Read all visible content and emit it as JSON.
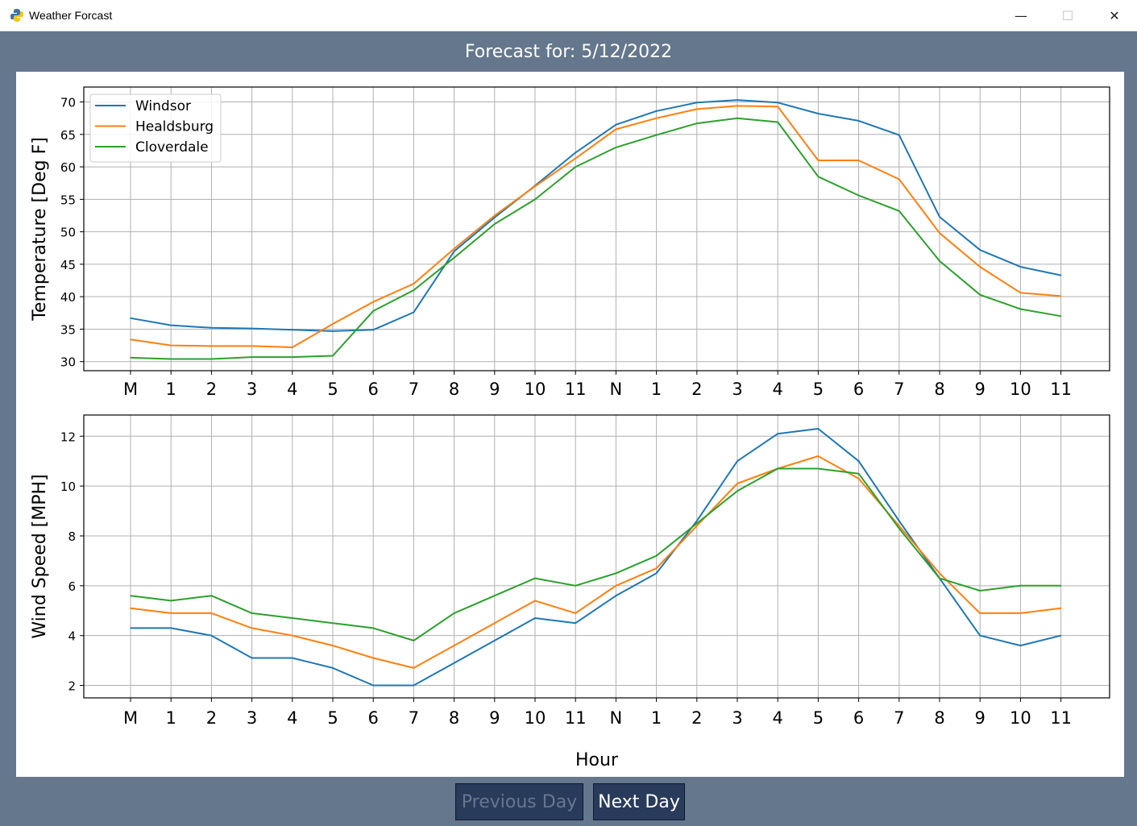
{
  "window": {
    "title": "Weather Forcast",
    "icon": "python-icon",
    "controls": {
      "minimize": "—",
      "maximize": "☐",
      "close": "✕"
    }
  },
  "header": {
    "title": "Forecast for: 5/12/2022"
  },
  "buttons": {
    "previous_label": "Previous Day",
    "previous_enabled": false,
    "next_label": "Next Day",
    "next_enabled": true
  },
  "chart_data": [
    {
      "type": "line",
      "ylabel": "Temperature [Deg F]",
      "xlabel": "",
      "categories": [
        "M",
        "1",
        "2",
        "3",
        "4",
        "5",
        "6",
        "7",
        "8",
        "9",
        "10",
        "11",
        "N",
        "1",
        "2",
        "3",
        "4",
        "5",
        "6",
        "7",
        "8",
        "9",
        "10",
        "11"
      ],
      "yticks": [
        30,
        35,
        40,
        45,
        50,
        55,
        60,
        65,
        70
      ],
      "ylim": [
        28.6,
        72.3
      ],
      "grid": true,
      "legend": "top-left",
      "series": [
        {
          "name": "Windsor",
          "color": "#1f77b4",
          "values": [
            36.7,
            35.6,
            35.2,
            35.1,
            34.9,
            34.7,
            34.9,
            37.6,
            47.0,
            52.2,
            57.1,
            62.2,
            66.5,
            68.6,
            69.9,
            70.3,
            69.9,
            68.2,
            67.1,
            64.9,
            52.3,
            47.2,
            44.6,
            43.3
          ]
        },
        {
          "name": "Healdsburg",
          "color": "#ff7f0e",
          "values": [
            33.4,
            32.5,
            32.4,
            32.4,
            32.2,
            35.8,
            39.2,
            42.0,
            47.4,
            52.5,
            57.0,
            61.3,
            65.8,
            67.5,
            68.9,
            69.4,
            69.3,
            61.0,
            61.0,
            58.1,
            49.8,
            44.6,
            40.6,
            40.1
          ]
        },
        {
          "name": "Cloverdale",
          "color": "#2ca02c",
          "values": [
            30.6,
            30.4,
            30.4,
            30.7,
            30.7,
            30.9,
            37.8,
            41.0,
            46.0,
            51.2,
            55.0,
            60.0,
            63.0,
            64.9,
            66.7,
            67.5,
            66.9,
            58.5,
            55.6,
            53.2,
            45.5,
            40.3,
            38.1,
            37.0
          ]
        }
      ]
    },
    {
      "type": "line",
      "ylabel": "Wind Speed [MPH]",
      "xlabel": "Hour",
      "categories": [
        "M",
        "1",
        "2",
        "3",
        "4",
        "5",
        "6",
        "7",
        "8",
        "9",
        "10",
        "11",
        "N",
        "1",
        "2",
        "3",
        "4",
        "5",
        "6",
        "7",
        "8",
        "9",
        "10",
        "11"
      ],
      "yticks": [
        2,
        4,
        6,
        8,
        10,
        12
      ],
      "ylim": [
        1.5,
        12.85
      ],
      "grid": true,
      "series": [
        {
          "name": "Windsor",
          "color": "#1f77b4",
          "values": [
            4.3,
            4.3,
            4.0,
            3.1,
            3.1,
            2.7,
            2.0,
            2.0,
            2.9,
            3.8,
            4.7,
            4.5,
            5.6,
            6.5,
            8.6,
            11.0,
            12.1,
            12.3,
            11.0,
            8.6,
            6.3,
            4.0,
            3.6,
            4.0
          ]
        },
        {
          "name": "Healdsburg",
          "color": "#ff7f0e",
          "values": [
            5.1,
            4.9,
            4.9,
            4.3,
            4.0,
            3.6,
            3.1,
            2.7,
            3.6,
            4.5,
            5.4,
            4.9,
            6.0,
            6.7,
            8.4,
            10.1,
            10.7,
            11.2,
            10.3,
            8.4,
            6.5,
            4.9,
            4.9,
            5.1
          ]
        },
        {
          "name": "Cloverdale",
          "color": "#2ca02c",
          "values": [
            5.6,
            5.4,
            5.6,
            4.9,
            4.7,
            4.5,
            4.3,
            3.8,
            4.9,
            5.6,
            6.3,
            6.0,
            6.5,
            7.2,
            8.5,
            9.8,
            10.7,
            10.7,
            10.5,
            8.3,
            6.3,
            5.8,
            6.0,
            6.0
          ]
        }
      ]
    }
  ]
}
